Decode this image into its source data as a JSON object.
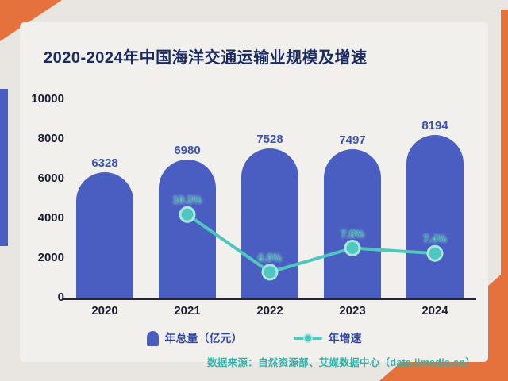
{
  "title": "2020-2024年中国海洋交通运输业规模及增速",
  "source": "数据来源：自然资源部、艾媒数据中心（data.iimedia.cn）",
  "legend": {
    "bars": "年总量（亿元）",
    "line": "年增速"
  },
  "colors": {
    "bar": "#4A5EC1",
    "line": "#4EC8BF",
    "line_halo": "#A9E6E1",
    "accent_orange": "#E5713C",
    "title_navy": "#1A2A62",
    "axis_text": "#1B1B30",
    "bar_value_text": "#3D52B8",
    "pct_text": "#2BA9A2",
    "source_text": "#2DB3AB",
    "page_bg": "#E9E6E2",
    "card_bg": "#F2F0ED"
  },
  "chart_data": {
    "type": "bar+line",
    "title": "2020-2024年中国海洋交通运输业规模及增速",
    "categories": [
      "2020",
      "2021",
      "2022",
      "2023",
      "2024"
    ],
    "series": [
      {
        "name": "年总量（亿元）",
        "type": "bar",
        "values": [
          6328,
          6980,
          7528,
          7497,
          8194
        ],
        "labels": [
          "6328",
          "6980",
          "7528",
          "7497",
          "8194"
        ]
      },
      {
        "name": "年增速",
        "type": "line",
        "values": [
          null,
          10.3,
          6.0,
          7.8,
          7.4
        ],
        "labels": [
          null,
          "10.3%",
          "6.0%",
          "7.8%",
          "7.4%"
        ]
      }
    ],
    "xlabel": "",
    "ylabel": "",
    "ylim": [
      0,
      10000
    ],
    "yticks": [
      0,
      2000,
      4000,
      6000,
      8000,
      10000
    ],
    "y2lim": [
      4.1,
      18.9
    ],
    "grid": false,
    "legend_position": "bottom"
  }
}
